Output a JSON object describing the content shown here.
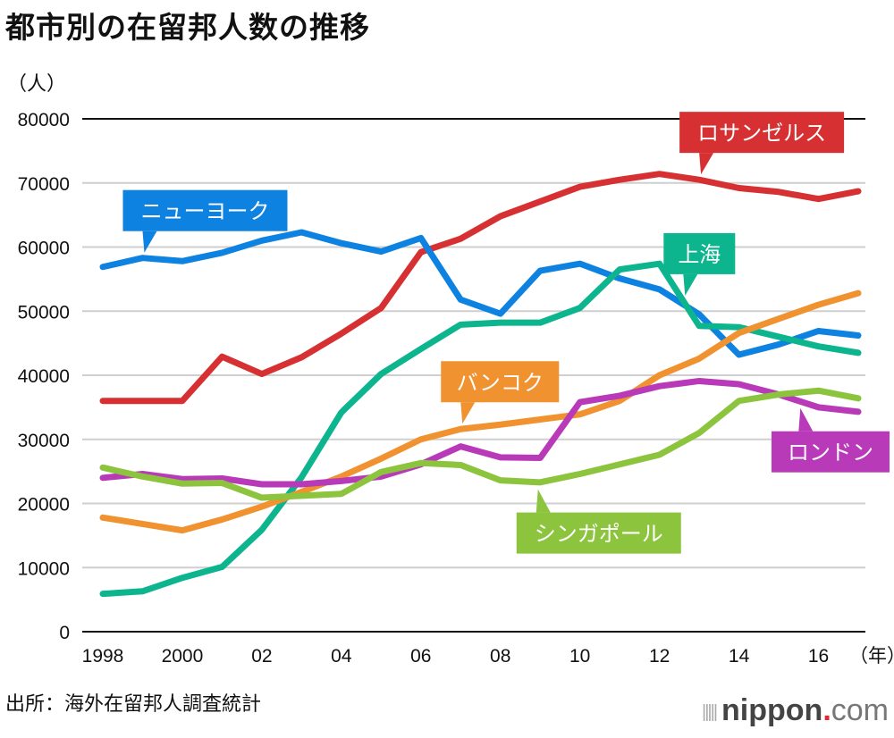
{
  "chart_data": {
    "type": "line",
    "title": "都市別の在留邦人数の推移",
    "ylabel": "（人）",
    "xlabel": "（年）",
    "ylim": [
      0,
      80000
    ],
    "yticks": [
      0,
      10000,
      20000,
      30000,
      40000,
      50000,
      60000,
      70000,
      80000
    ],
    "ytick_labels": [
      "0",
      "10000",
      "20000",
      "30000",
      "40000",
      "50000",
      "60000",
      "70000",
      "80000"
    ],
    "x": [
      1998,
      1999,
      2000,
      2001,
      2002,
      2003,
      2004,
      2005,
      2006,
      2007,
      2008,
      2009,
      2010,
      2011,
      2012,
      2013,
      2014,
      2015,
      2016,
      2017
    ],
    "xticks": [
      1998,
      2000,
      2002,
      2004,
      2006,
      2008,
      2010,
      2012,
      2014,
      2016
    ],
    "xtick_labels": [
      "1998",
      "2000",
      "02",
      "04",
      "06",
      "08",
      "10",
      "12",
      "14",
      "16"
    ],
    "grid": true,
    "legend": "inline-callouts",
    "series": [
      {
        "name": "ロサンゼルス",
        "color": "#d63032",
        "label_at": 2013,
        "label_pos": "above",
        "values": [
          36000,
          36000,
          36000,
          42900,
          40200,
          42800,
          46500,
          50500,
          59200,
          61300,
          64800,
          67100,
          69400,
          70500,
          71400,
          70500,
          69200,
          68600,
          67500,
          68700
        ]
      },
      {
        "name": "ニューヨーク",
        "color": "#0d82e0",
        "label_at": 1999,
        "label_pos": "above",
        "values": [
          56900,
          58300,
          57800,
          59100,
          61000,
          62300,
          60600,
          59300,
          61400,
          51800,
          49600,
          56300,
          57400,
          55100,
          53400,
          49500,
          43200,
          44800,
          46900,
          46200
        ]
      },
      {
        "name": "上海",
        "color": "#0cb58e",
        "label_at": 2012.6,
        "label_pos": "above",
        "values": [
          5900,
          6300,
          8400,
          10100,
          15900,
          24100,
          34200,
          40200,
          44100,
          47900,
          48200,
          48200,
          50500,
          56500,
          57400,
          47700,
          47500,
          46000,
          44500,
          43500
        ]
      },
      {
        "name": "バンコク",
        "color": "#f0922f",
        "label_at": 2007,
        "label_pos": "above",
        "values": [
          17800,
          16800,
          15800,
          17500,
          19500,
          21800,
          24200,
          27000,
          30000,
          31600,
          32300,
          33100,
          33900,
          36000,
          40000,
          42600,
          46600,
          48800,
          51000,
          52800
        ]
      },
      {
        "name": "ロンドン",
        "color": "#b83ab8",
        "label_at": 2015.5,
        "label_pos": "below",
        "values": [
          24000,
          24600,
          23800,
          23900,
          23000,
          23000,
          23500,
          24200,
          26100,
          28900,
          27200,
          27100,
          35800,
          36800,
          38300,
          39100,
          38600,
          37000,
          35000,
          34300
        ]
      },
      {
        "name": "シンガポール",
        "color": "#8cc43e",
        "label_at": 2008.9,
        "label_pos": "below",
        "values": [
          25600,
          24200,
          23100,
          23200,
          20900,
          21200,
          21500,
          24900,
          26300,
          26000,
          23600,
          23300,
          24600,
          26100,
          27600,
          31000,
          36000,
          37000,
          37600,
          36400
        ]
      }
    ]
  },
  "footer": {
    "source": "出所：海外在留邦人調査統計",
    "brand_main": "nippon",
    "brand_dot": ".",
    "brand_suffix": "com"
  }
}
